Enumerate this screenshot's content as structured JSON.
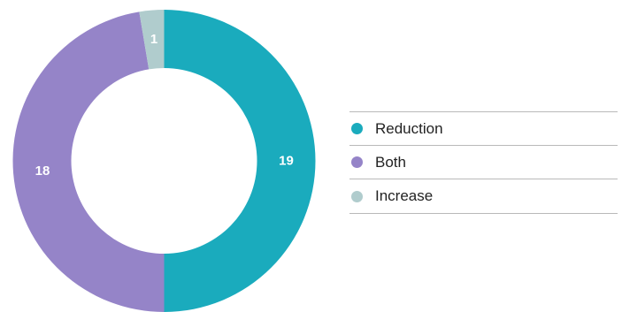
{
  "chart_data": {
    "type": "pie",
    "donut": true,
    "categories": [
      "Reduction",
      "Both",
      "Increase"
    ],
    "values": [
      19,
      18,
      1
    ],
    "colors": [
      "#1aabbd",
      "#9584c8",
      "#b0cccd"
    ],
    "start_angle_deg": 0,
    "direction": "clockwise",
    "data_labels": true,
    "legend": "right"
  }
}
